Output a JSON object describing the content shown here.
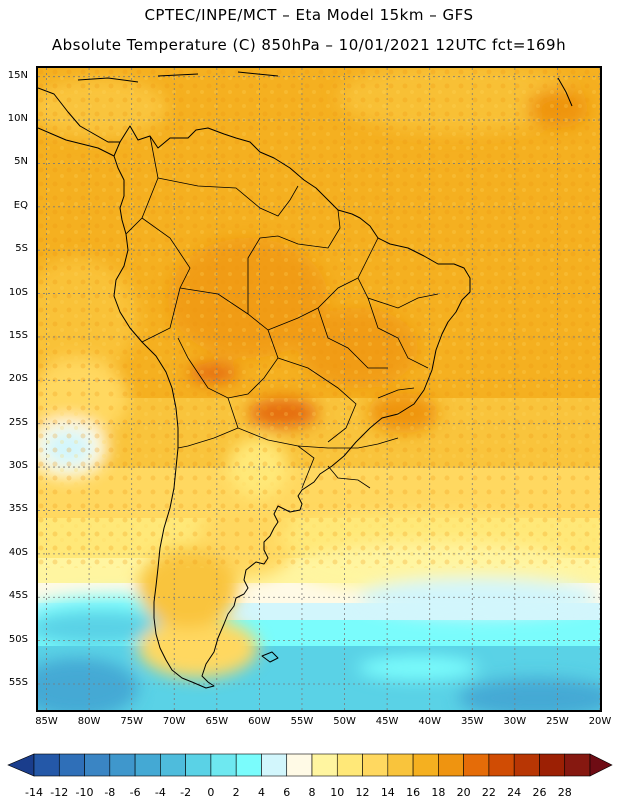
{
  "header": {
    "line1": "CPTEC/INPE/MCT –  Eta Model 15km – GFS",
    "line2": "Absolute Temperature (C) 850hPa – 10/01/2021 12UTC fct=169h"
  },
  "map": {
    "lat_labels": [
      "15N",
      "10N",
      "5N",
      "EQ",
      "5S",
      "10S",
      "15S",
      "20S",
      "25S",
      "30S",
      "35S",
      "40S",
      "45S",
      "50S",
      "55S"
    ],
    "lon_labels": [
      "85W",
      "80W",
      "75W",
      "70W",
      "65W",
      "60W",
      "55W",
      "50W",
      "45W",
      "40W",
      "35W",
      "30W",
      "25W",
      "20W"
    ],
    "lat_range": [
      -58,
      16
    ],
    "lon_range": [
      -86,
      -20
    ],
    "grid": true
  },
  "colorbar": {
    "labels": [
      "-14",
      "-12",
      "-10",
      "-8",
      "-6",
      "-4",
      "-2",
      "0",
      "2",
      "4",
      "6",
      "8",
      "10",
      "12",
      "14",
      "16",
      "18",
      "20",
      "22",
      "24",
      "26",
      "28"
    ],
    "colors": [
      "#1a3d8c",
      "#2458a8",
      "#2f6fb8",
      "#3a85c4",
      "#3f97cc",
      "#44a9d4",
      "#4ebcdc",
      "#5ad2e6",
      "#6ee8f0",
      "#7afcfc",
      "#d2f6fc",
      "#fffae6",
      "#fff5a0",
      "#ffe878",
      "#ffd860",
      "#f9c43c",
      "#f5b020",
      "#ef9410",
      "#e56c08",
      "#d04c04",
      "#b83604",
      "#9c2004",
      "#861810",
      "#6e0c14"
    ]
  },
  "colors": {
    "land_border": "#000000",
    "grid": "#7a7a7a",
    "warm_base": "#f5b020",
    "hot": "#e56c08",
    "mild": "#ffe878",
    "cool": "#fffae6",
    "cold": "#7afcfc",
    "very_cold": "#3f97cc"
  }
}
